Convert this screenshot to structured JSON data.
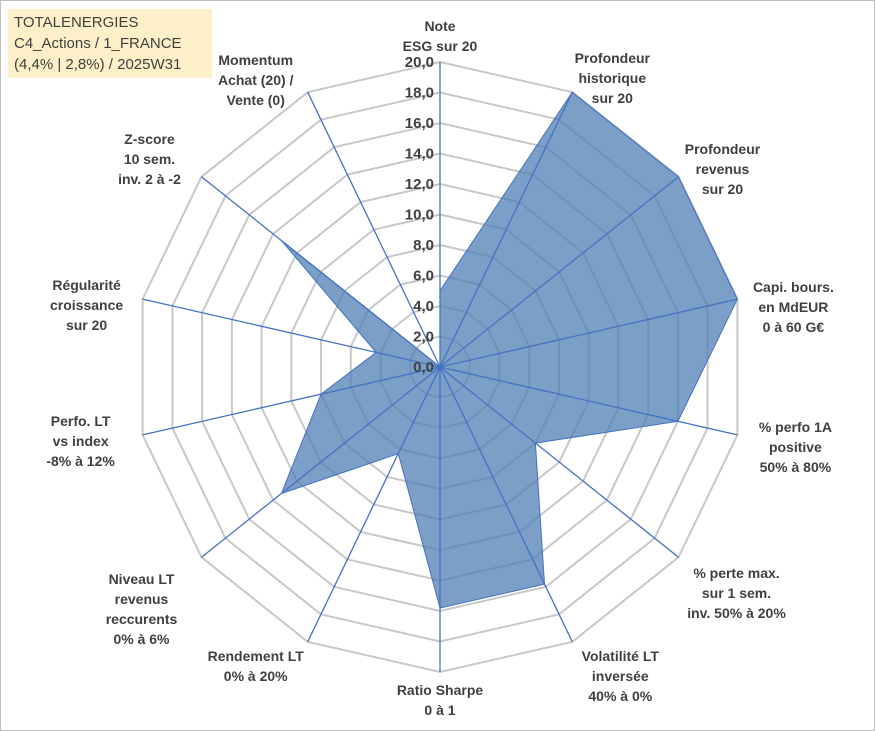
{
  "info_box": {
    "line1": "TOTALENERGIES",
    "line2": "C4_Actions / 1_FRANCE",
    "line3": "(4,4% | 2,8%) / 2025W31"
  },
  "colors": {
    "fill": "#4f7fb4",
    "stroke": "#4472c4",
    "grid": "#c8c8c8",
    "spoke": "#4472c4",
    "text": "#404040",
    "info_bg": "#fdf0c8"
  },
  "chart_data": {
    "type": "radar",
    "rmin": 0,
    "rmax": 20,
    "step": 2,
    "grid": true,
    "tick_labels": [
      "0,0",
      "2,0",
      "4,0",
      "6,0",
      "8,0",
      "10,0",
      "12,0",
      "14,0",
      "16,0",
      "18,0",
      "20,0"
    ],
    "axes": [
      {
        "label": [
          "Note",
          "ESG sur 20"
        ],
        "value": 5.0
      },
      {
        "label": [
          "Profondeur",
          "historique",
          "sur 20"
        ],
        "value": 20.0
      },
      {
        "label": [
          "Profondeur",
          "revenus",
          "sur 20"
        ],
        "value": 20.0
      },
      {
        "label": [
          "Capi. bours.",
          "en MdEUR",
          "0 à 60 G€"
        ],
        "value": 20.0
      },
      {
        "label": [
          "% perfo 1A",
          "positive",
          "50% à 80%"
        ],
        "value": 16.0
      },
      {
        "label": [
          "% perte max.",
          "sur 1 sem.",
          "inv. 50% à 20%"
        ],
        "value": 8.0
      },
      {
        "label": [
          "Volatilité LT",
          "inversée",
          "40% à 0%"
        ],
        "value": 15.8
      },
      {
        "label": [
          "Ratio Sharpe",
          "0 à 1"
        ],
        "value": 15.8
      },
      {
        "label": [
          "Rendement LT",
          "0% à 20%"
        ],
        "value": 6.3
      },
      {
        "label": [
          "Niveau LT",
          "revenus",
          "reccurents",
          "0% à 6%"
        ],
        "value": 13.3
      },
      {
        "label": [
          "Perfo. LT",
          "vs index",
          "-8% à 12%"
        ],
        "value": 8.0
      },
      {
        "label": [
          "Régularité",
          "croissance",
          "sur 20"
        ],
        "value": 4.3
      },
      {
        "label": [
          "Z-score",
          "10 sem.",
          "inv. 2 à -2"
        ],
        "value": 13.3
      },
      {
        "label": [
          "Momentum",
          "Achat (20) /",
          "Vente (0)"
        ],
        "value": 0.0
      }
    ]
  }
}
